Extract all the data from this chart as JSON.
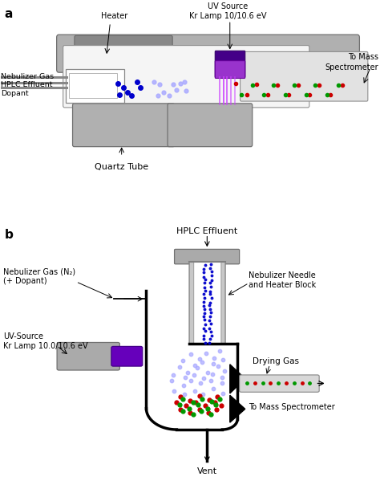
{
  "panel_a": {
    "label": "a",
    "title_uv": "UV Source\nKr Lamp 10/10.6 eV",
    "label_heater": "Heater",
    "label_neb_gas": "Nebulizer Gas",
    "label_hplc": "HPLC Effluent",
    "label_dopant": "Dopant",
    "label_quartz": "Quartz Tube",
    "label_mass_spec": "To Mass\nSpectrometer"
  },
  "panel_b": {
    "label": "b",
    "label_hplc_effluent": "HPLC Effluent",
    "label_neb_gas": "Nebulizer Gas (N₂)\n(+ Dopant)",
    "label_uv": "UV-Source\nKr Lamp 10.0/10.6 eV",
    "label_neb_needle": "Nebulizer Needle\nand Heater Block",
    "label_drying_gas": "Drying Gas",
    "label_mass_spec": "To Mass Spectrometer",
    "label_vent": "Vent"
  },
  "colors": {
    "gray_dark": "#707070",
    "gray_medium": "#999999",
    "gray_light": "#bbbbbb",
    "gray_tube": "#d8d8d8",
    "purple_top": "#6600aa",
    "purple_bot": "#cc44ff",
    "blue_dot": "#0000cc",
    "blue_light": "#aaaaff",
    "red_dot": "#cc0000",
    "green_dot": "#009900",
    "white": "#ffffff",
    "black": "#000000",
    "bg": "#ffffff"
  }
}
